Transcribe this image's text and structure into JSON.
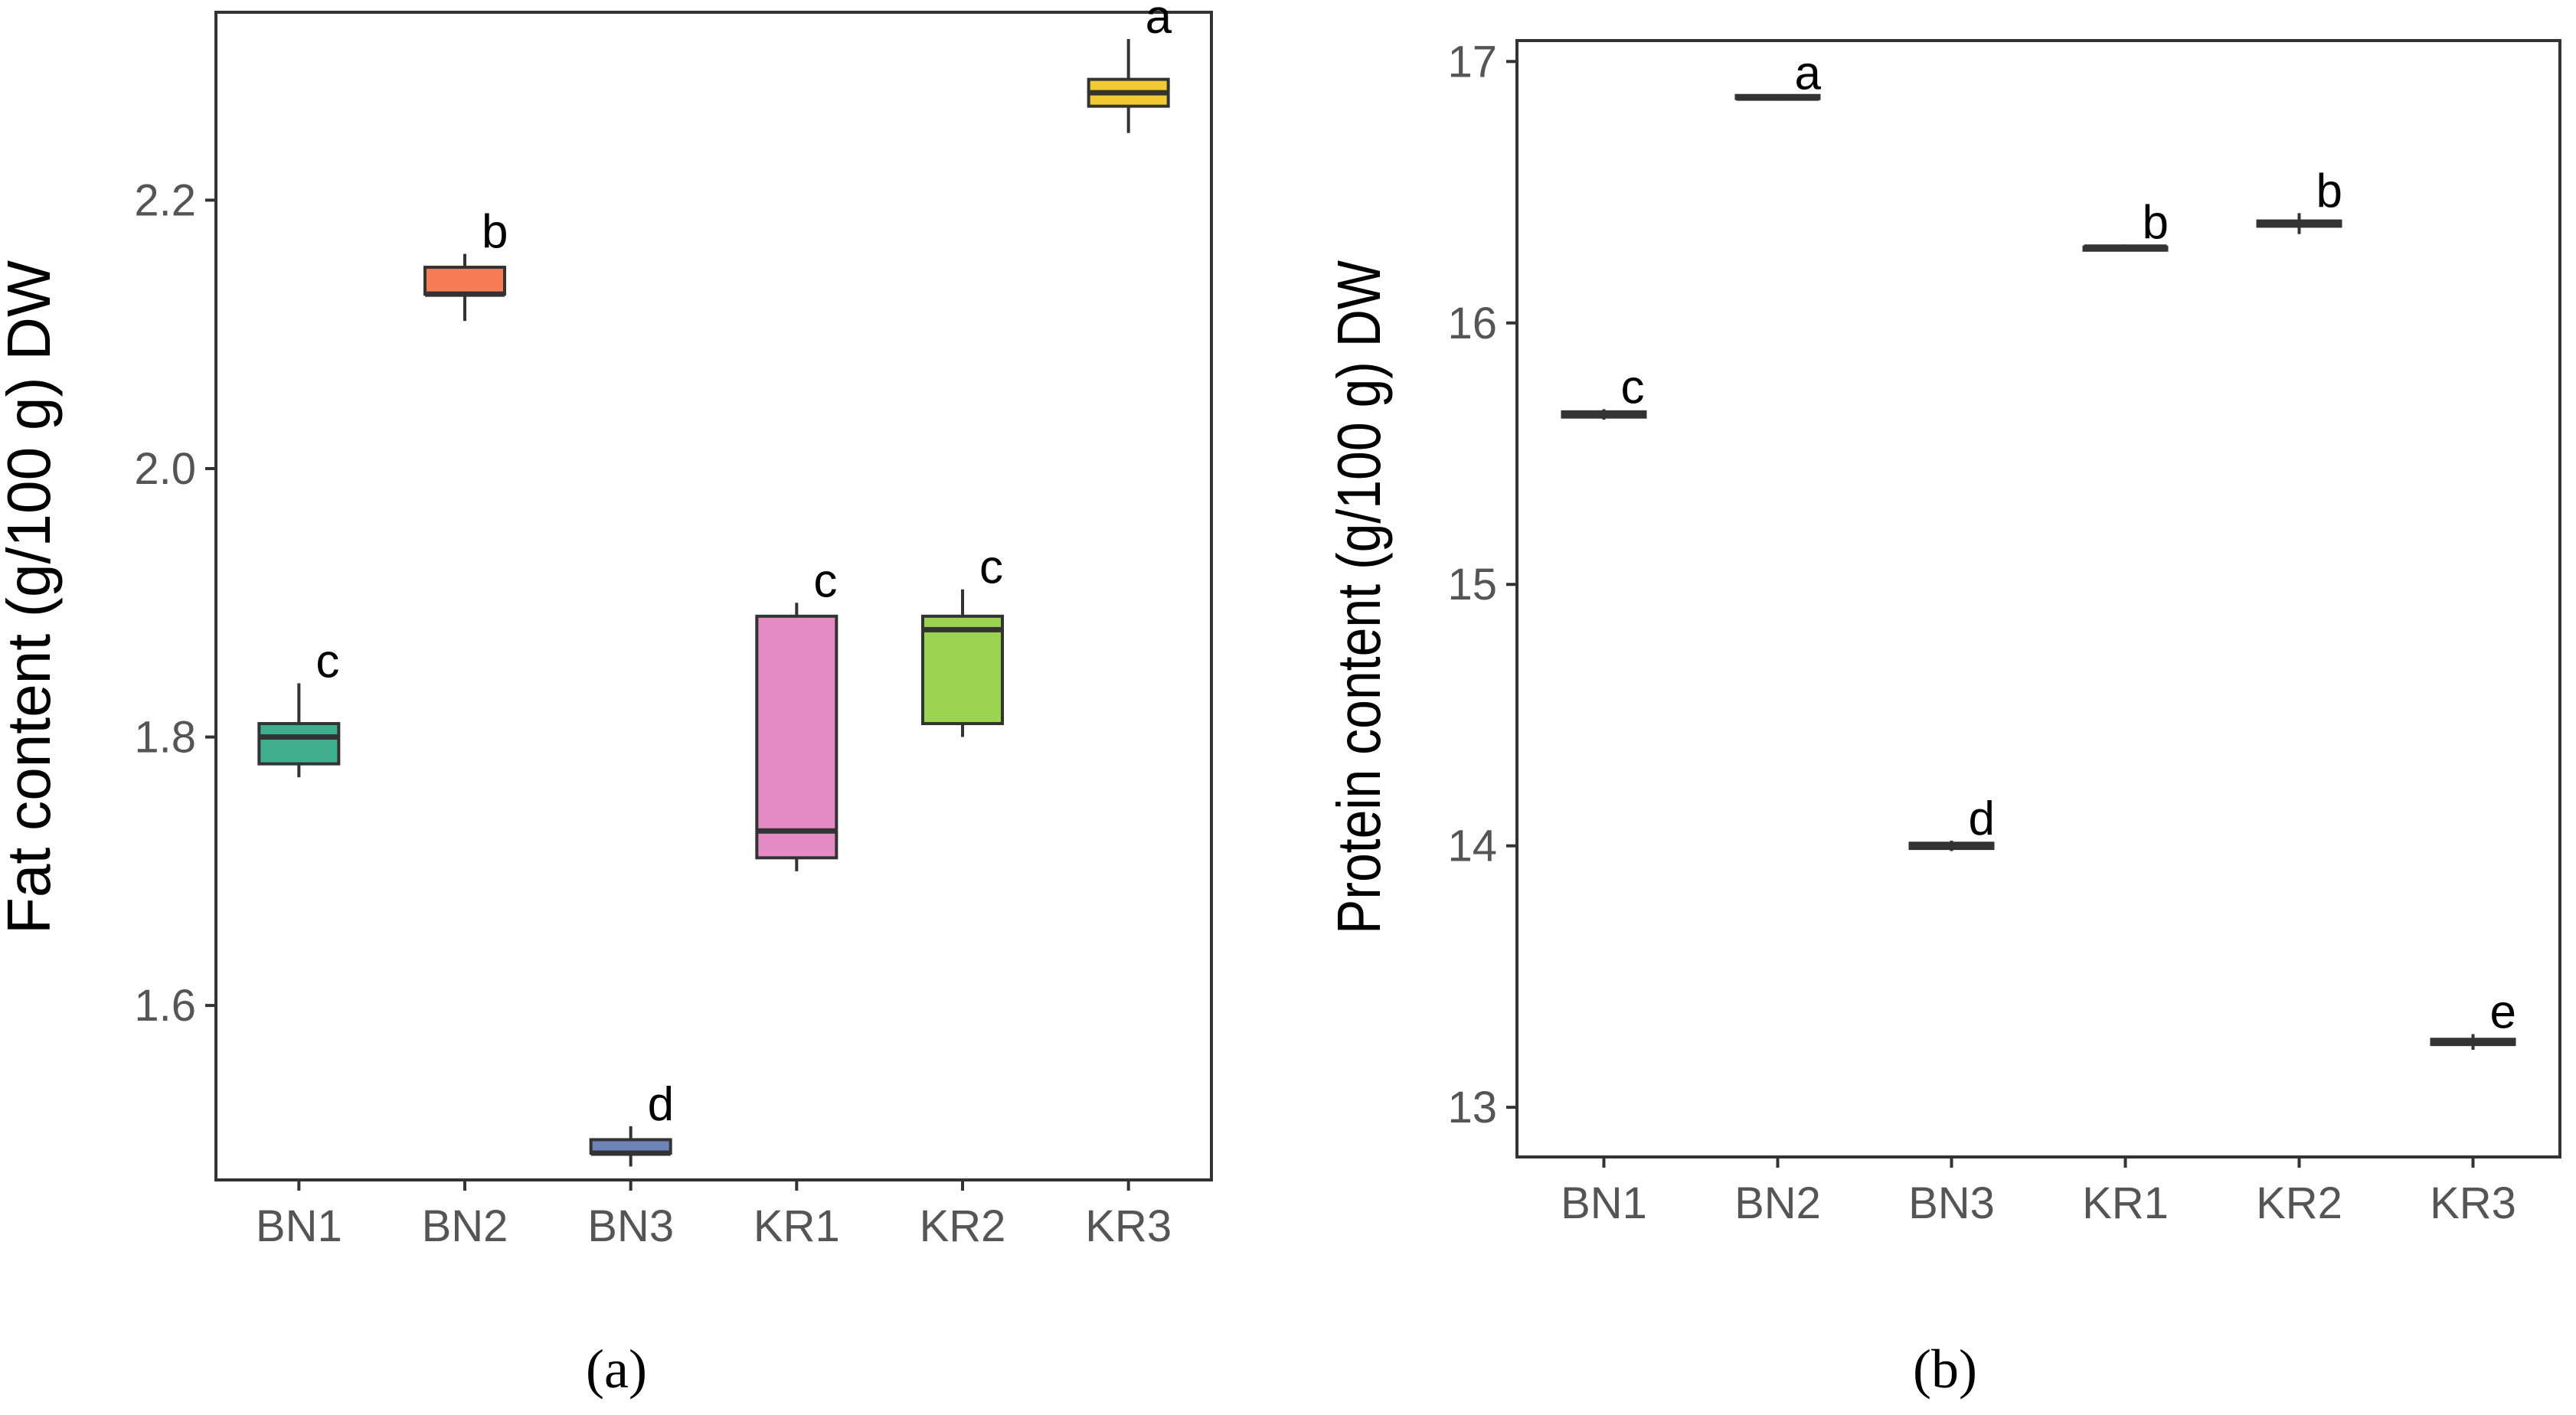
{
  "chart_data": [
    {
      "type": "box",
      "panel_label": "(a)",
      "ylabel": "Fat content (g/100 g) DW",
      "xlabel": "",
      "ylim": [
        1.47,
        2.34
      ],
      "yticks": [
        "1.6",
        "1.8",
        "2.0",
        "2.2"
      ],
      "categories": [
        "BN1",
        "BN2",
        "BN3",
        "KR1",
        "KR2",
        "KR3"
      ],
      "colors": [
        "#3fae8c",
        "#f57c55",
        "#6f83b8",
        "#e68ac6",
        "#9bd450",
        "#f2c933"
      ],
      "boxes": [
        {
          "min": 1.77,
          "q1": 1.78,
          "median": 1.8,
          "q3": 1.81,
          "max": 1.84,
          "letter": "c"
        },
        {
          "min": 2.11,
          "q1": 2.13,
          "median": 2.13,
          "q3": 2.15,
          "max": 2.16,
          "letter": "b"
        },
        {
          "min": 1.48,
          "q1": 1.49,
          "median": 1.49,
          "q3": 1.5,
          "max": 1.51,
          "letter": "d"
        },
        {
          "min": 1.7,
          "q1": 1.71,
          "median": 1.73,
          "q3": 1.89,
          "max": 1.9,
          "letter": "c"
        },
        {
          "min": 1.8,
          "q1": 1.81,
          "median": 1.88,
          "q3": 1.89,
          "max": 1.91,
          "letter": "c"
        },
        {
          "min": 2.25,
          "q1": 2.27,
          "median": 2.28,
          "q3": 2.29,
          "max": 2.32,
          "letter": "a"
        }
      ]
    },
    {
      "type": "box",
      "panel_label": "(b)",
      "ylabel": "Protein content (g/100 g) DW",
      "xlabel": "",
      "ylim": [
        12.81,
        17.08
      ],
      "yticks": [
        "13",
        "14",
        "15",
        "16",
        "17"
      ],
      "categories": [
        "BN1",
        "BN2",
        "BN3",
        "KR1",
        "KR2",
        "KR3"
      ],
      "colors": [
        "#3fae8c",
        "#f57c55",
        "#6f83b8",
        "#e68ac6",
        "#9bd450",
        "#f2c933"
      ],
      "boxes": [
        {
          "min": 15.63,
          "q1": 15.64,
          "median": 15.65,
          "q3": 15.66,
          "max": 15.67,
          "letter": "c"
        },
        {
          "min": 16.85,
          "q1": 16.86,
          "median": 16.86,
          "q3": 16.87,
          "max": 16.87,
          "letter": "a"
        },
        {
          "min": 13.98,
          "q1": 13.99,
          "median": 14.0,
          "q3": 14.01,
          "max": 14.02,
          "letter": "d"
        },
        {
          "min": 16.28,
          "q1": 16.28,
          "median": 16.29,
          "q3": 16.29,
          "max": 16.3,
          "letter": "b"
        },
        {
          "min": 16.34,
          "q1": 16.37,
          "median": 16.38,
          "q3": 16.39,
          "max": 16.42,
          "letter": "b"
        },
        {
          "min": 13.22,
          "q1": 13.24,
          "median": 13.25,
          "q3": 13.26,
          "max": 13.28,
          "letter": "e"
        }
      ]
    }
  ]
}
